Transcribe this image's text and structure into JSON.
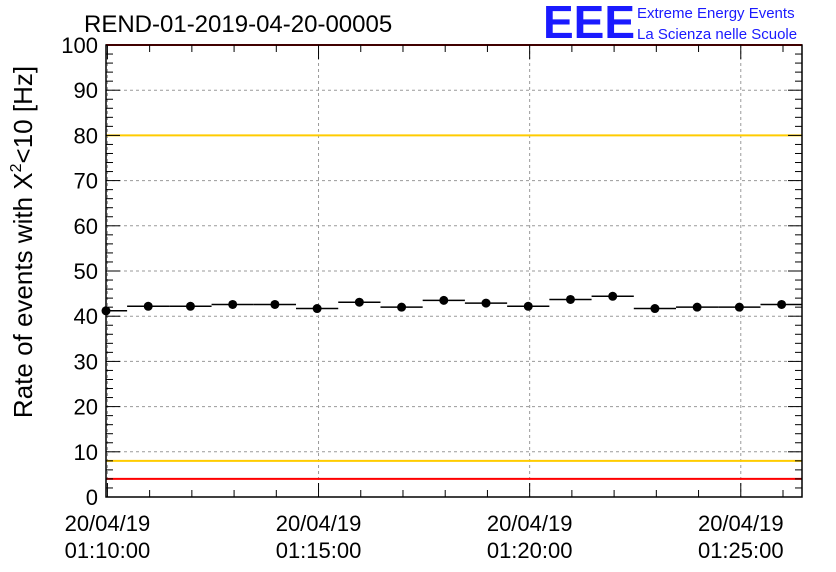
{
  "header": {
    "run_id": "REND-01-2019-04-20-00005"
  },
  "logo": {
    "mark": "EEE",
    "line1": "Extreme Energy Events",
    "line2": "La Scienza nelle Scuole",
    "color": "#1a1aff"
  },
  "chart_data": {
    "type": "scatter",
    "title": "REND-01-2019-04-20-00005",
    "ylabel_main": "Rate of events with X",
    "ylabel_sup": "2",
    "ylabel_tail": "<10 [Hz]",
    "xlabel": "",
    "ylim": [
      0,
      100
    ],
    "yticks": [
      "0",
      "10",
      "20",
      "30",
      "40",
      "50",
      "60",
      "70",
      "80",
      "90",
      "100"
    ],
    "xticks": [
      {
        "date": "20/04/19",
        "time": "01:10:00"
      },
      {
        "date": "20/04/19",
        "time": "01:15:00"
      },
      {
        "date": "20/04/19",
        "time": "01:20:00"
      },
      {
        "date": "20/04/19",
        "time": "01:25:00"
      }
    ],
    "x_range": [
      "01:09:58",
      "01:26:27"
    ],
    "bin_minutes": 1,
    "grid": true,
    "x_times": [
      "01:09:58",
      "01:10:58",
      "01:11:58",
      "01:12:58",
      "01:13:58",
      "01:14:58",
      "01:15:58",
      "01:16:58",
      "01:17:58",
      "01:18:58",
      "01:19:58",
      "01:20:58",
      "01:21:58",
      "01:22:58",
      "01:23:58",
      "01:24:58",
      "01:25:58"
    ],
    "values": [
      41.2,
      42.2,
      42.2,
      42.6,
      42.6,
      41.7,
      43.1,
      42.0,
      43.5,
      42.9,
      42.2,
      43.7,
      44.4,
      41.7,
      42.0,
      42.0,
      42.6
    ],
    "reference_lines": [
      {
        "y": 100,
        "color": "#ff0000"
      },
      {
        "y": 80,
        "color": "#ffcc00"
      },
      {
        "y": 8,
        "color": "#ffcc00"
      },
      {
        "y": 4,
        "color": "#ff0000"
      }
    ]
  }
}
